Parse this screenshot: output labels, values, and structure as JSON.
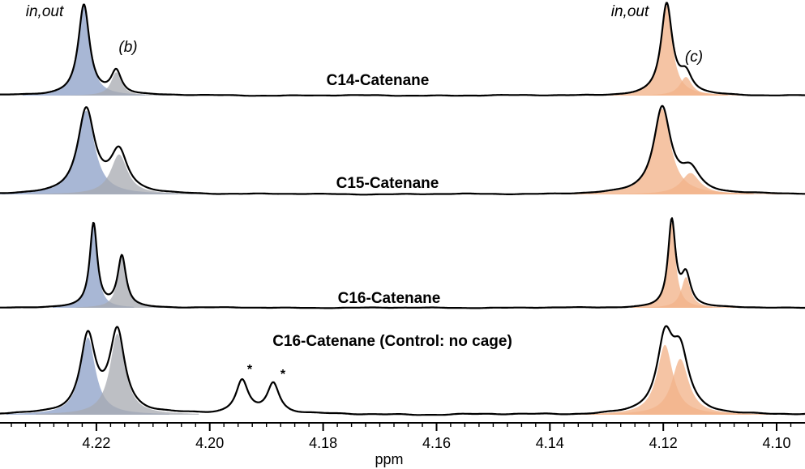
{
  "chart_data": {
    "type": "line",
    "subtype": "stacked NMR spectra with deconvoluted peak fits",
    "xlabel": "ppm",
    "x_range": [
      4.237,
      4.095
    ],
    "x_reversed": true,
    "x_ticks": [
      "4.22",
      "4.20",
      "4.18",
      "4.16",
      "4.14",
      "4.12",
      "4.10"
    ],
    "x_tick_values": [
      4.22,
      4.2,
      4.18,
      4.16,
      4.14,
      4.12,
      4.1
    ],
    "colors": {
      "blue": "#8fa3c9",
      "gray": "#a7aab0",
      "orange": "#f2b48a",
      "line": "#000000"
    },
    "traces": [
      {
        "name": "C14-Catenane",
        "baseline_noise": 0.5,
        "peaks": [
          {
            "center": 4.2222,
            "height": 9.7,
            "hwhm": 0.0012,
            "fit": "blue"
          },
          {
            "center": 4.2165,
            "height": 2.5,
            "hwhm": 0.0011,
            "fit": "gray"
          },
          {
            "center": 4.1194,
            "height": 9.7,
            "hwhm": 0.0012,
            "fit": "orange"
          },
          {
            "center": 4.116,
            "height": 2.0,
            "hwhm": 0.0013,
            "fit": "orange"
          }
        ]
      },
      {
        "name": "C15-Catenane",
        "baseline_noise": 0.5,
        "peaks": [
          {
            "center": 4.2218,
            "height": 9.0,
            "hwhm": 0.0018,
            "fit": "blue"
          },
          {
            "center": 4.216,
            "height": 4.3,
            "hwhm": 0.0018,
            "fit": "gray"
          },
          {
            "center": 4.1202,
            "height": 9.2,
            "hwhm": 0.0018,
            "fit": "orange"
          },
          {
            "center": 4.1152,
            "height": 2.3,
            "hwhm": 0.002,
            "fit": "orange"
          }
        ]
      },
      {
        "name": "C16-Catenane",
        "baseline_noise": 0.4,
        "peaks": [
          {
            "center": 4.2205,
            "height": 9.0,
            "hwhm": 0.0008,
            "fit": "blue"
          },
          {
            "center": 4.2155,
            "height": 5.5,
            "hwhm": 0.0009,
            "fit": "gray"
          },
          {
            "center": 4.1185,
            "height": 9.2,
            "hwhm": 0.0008,
            "fit": "orange"
          },
          {
            "center": 4.116,
            "height": 3.3,
            "hwhm": 0.001,
            "fit": "orange"
          }
        ]
      },
      {
        "name": "C16-Catenane (Control: no cage)",
        "baseline_noise": 0.8,
        "peaks": [
          {
            "center": 4.2215,
            "height": 8.3,
            "hwhm": 0.0016,
            "fit": "blue"
          },
          {
            "center": 4.2163,
            "height": 8.7,
            "hwhm": 0.0016,
            "fit": "gray"
          },
          {
            "center": 4.1943,
            "height": 3.6,
            "hwhm": 0.0013,
            "fit": "none"
          },
          {
            "center": 4.1888,
            "height": 3.3,
            "hwhm": 0.0013,
            "fit": "none"
          },
          {
            "center": 4.1197,
            "height": 7.5,
            "hwhm": 0.0017,
            "fit": "orange"
          },
          {
            "center": 4.117,
            "height": 6.0,
            "hwhm": 0.0018,
            "fit": "orange"
          }
        ]
      }
    ],
    "annotations": [
      {
        "text": "in,out",
        "style": "italic",
        "near_ppm": 4.2225,
        "trace": "C14-Catenane"
      },
      {
        "text": "(b)",
        "style": "italic",
        "near_ppm": 4.2165,
        "trace": "C14-Catenane"
      },
      {
        "text": "in,out",
        "style": "italic",
        "near_ppm": 4.1195,
        "trace": "C14-Catenane"
      },
      {
        "text": "(c)",
        "style": "italic",
        "near_ppm": 4.116,
        "trace": "C14-Catenane"
      },
      {
        "text": "*",
        "style": "bold",
        "near_ppm": 4.1943,
        "trace": "C16-Catenane (Control: no cage)"
      },
      {
        "text": "*",
        "style": "bold",
        "near_ppm": 4.1888,
        "trace": "C16-Catenane (Control: no cage)"
      }
    ]
  }
}
